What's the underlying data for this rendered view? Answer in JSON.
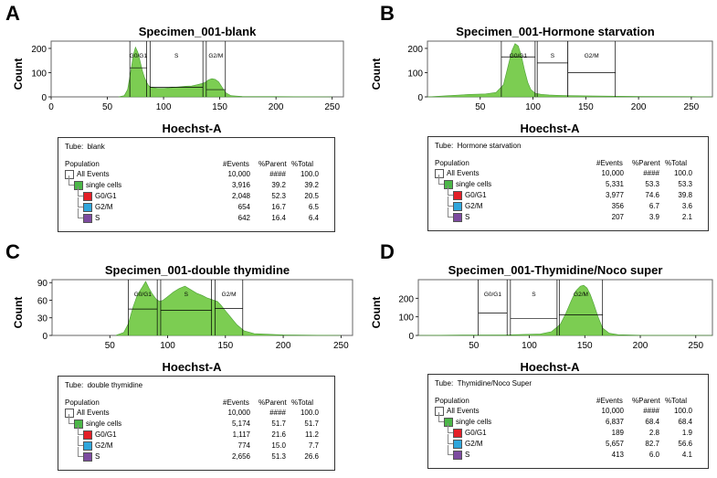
{
  "chart_data": [
    {
      "type": "area",
      "panel_label": "A",
      "title": "Specimen_001-blank",
      "xlabel": "Hoechst-A",
      "ylabel": "Count",
      "xlim": [
        0,
        260
      ],
      "ylim": [
        0,
        230
      ],
      "xticks": [
        0,
        50,
        100,
        150,
        200,
        250
      ],
      "yticks": [
        0,
        100,
        200
      ],
      "gates": [
        {
          "label": "G0/G1",
          "x1": 70,
          "x2": 85,
          "level": 120
        },
        {
          "label": "S",
          "x1": 88,
          "x2": 135,
          "level": 40
        },
        {
          "label": "G2/M",
          "x1": 138,
          "x2": 155,
          "level": 30
        }
      ],
      "x": [
        60,
        65,
        68,
        71,
        73,
        75,
        77,
        79,
        81,
        83,
        85,
        87,
        90,
        95,
        100,
        105,
        110,
        115,
        120,
        125,
        130,
        134,
        137,
        140,
        143,
        146,
        149,
        152,
        155,
        160,
        170,
        200,
        250
      ],
      "y": [
        0,
        5,
        30,
        110,
        170,
        205,
        185,
        150,
        110,
        80,
        60,
        45,
        38,
        35,
        35,
        37,
        40,
        42,
        44,
        45,
        50,
        55,
        60,
        70,
        75,
        72,
        62,
        40,
        18,
        5,
        2,
        1,
        0
      ],
      "table": {
        "tube_label": "Tube:",
        "tube_name": "blank",
        "headers": [
          "Population",
          "#Events",
          "%Parent",
          "%Total"
        ],
        "rows": [
          {
            "name": "All Events",
            "events": "10,000",
            "parent": "####",
            "total": "100.0",
            "color": "#ffffff",
            "indent": 0
          },
          {
            "name": "single cells",
            "events": "3,916",
            "parent": "39.2",
            "total": "39.2",
            "color": "#4cb848",
            "indent": 1
          },
          {
            "name": "G0/G1",
            "events": "2,048",
            "parent": "52.3",
            "total": "20.5",
            "color": "#e41e26",
            "indent": 2
          },
          {
            "name": "G2/M",
            "events": "654",
            "parent": "16.7",
            "total": "6.5",
            "color": "#2fa6dc",
            "indent": 2
          },
          {
            "name": "S",
            "events": "642",
            "parent": "16.4",
            "total": "6.4",
            "color": "#7d4ba0",
            "indent": 2
          }
        ]
      }
    },
    {
      "type": "area",
      "panel_label": "B",
      "title": "Specimen_001-Hormone starvation",
      "xlabel": "Hoechst-A",
      "ylabel": "Count",
      "xlim": [
        0,
        270
      ],
      "ylim": [
        0,
        230
      ],
      "xticks": [
        50,
        100,
        150,
        200,
        250
      ],
      "yticks": [
        0,
        100,
        200
      ],
      "gates": [
        {
          "label": "G0/G1",
          "x1": 70,
          "x2": 102,
          "level": 165
        },
        {
          "label": "S",
          "x1": 104,
          "x2": 133,
          "level": 140
        },
        {
          "label": "G2/M",
          "x1": 133,
          "x2": 178,
          "level": 100
        }
      ],
      "x": [
        0,
        20,
        40,
        55,
        65,
        72,
        76,
        80,
        83,
        86,
        89,
        92,
        95,
        98,
        102,
        108,
        115,
        125,
        135,
        150,
        170,
        200,
        250,
        270
      ],
      "y": [
        0,
        5,
        10,
        12,
        18,
        50,
        120,
        190,
        220,
        210,
        170,
        110,
        60,
        30,
        15,
        10,
        8,
        6,
        5,
        4,
        3,
        2,
        1,
        0
      ],
      "table": {
        "tube_label": "Tube:",
        "tube_name": "Hormone starvation",
        "headers": [
          "Population",
          "#Events",
          "%Parent",
          "%Total"
        ],
        "rows": [
          {
            "name": "All Events",
            "events": "10,000",
            "parent": "####",
            "total": "100.0",
            "color": "#ffffff",
            "indent": 0
          },
          {
            "name": "single cells",
            "events": "5,331",
            "parent": "53.3",
            "total": "53.3",
            "color": "#4cb848",
            "indent": 1
          },
          {
            "name": "G0/G1",
            "events": "3,977",
            "parent": "74.6",
            "total": "39.8",
            "color": "#e41e26",
            "indent": 2
          },
          {
            "name": "G2/M",
            "events": "356",
            "parent": "6.7",
            "total": "3.6",
            "color": "#2fa6dc",
            "indent": 2
          },
          {
            "name": "S",
            "events": "207",
            "parent": "3.9",
            "total": "2.1",
            "color": "#7d4ba0",
            "indent": 2
          }
        ]
      }
    },
    {
      "type": "area",
      "panel_label": "C",
      "title": "Specimen_001-double thymidine",
      "xlabel": "Hoechst-A",
      "ylabel": "Count",
      "xlim": [
        0,
        260
      ],
      "ylim": [
        0,
        95
      ],
      "xticks": [
        50,
        100,
        150,
        200,
        250
      ],
      "yticks": [
        0,
        30,
        60,
        90
      ],
      "gates": [
        {
          "label": "G0/G1",
          "x1": 66,
          "x2": 91,
          "level": 45
        },
        {
          "label": "S",
          "x1": 94,
          "x2": 138,
          "level": 43
        },
        {
          "label": "G2/M",
          "x1": 141,
          "x2": 165,
          "level": 46
        }
      ],
      "x": [
        55,
        62,
        66,
        70,
        74,
        78,
        81,
        84,
        87,
        90,
        93,
        96,
        100,
        105,
        110,
        115,
        120,
        125,
        130,
        134,
        137,
        140,
        143,
        146,
        150,
        155,
        160,
        166,
        175,
        200,
        250
      ],
      "y": [
        0,
        5,
        20,
        48,
        70,
        82,
        92,
        80,
        70,
        62,
        58,
        60,
        66,
        74,
        80,
        84,
        78,
        72,
        68,
        64,
        62,
        60,
        58,
        52,
        42,
        30,
        18,
        8,
        3,
        1,
        0
      ],
      "table": {
        "tube_label": "Tube:",
        "tube_name": "double thymidine",
        "headers": [
          "Population",
          "#Events",
          "%Parent",
          "%Total"
        ],
        "rows": [
          {
            "name": "All Events",
            "events": "10,000",
            "parent": "####",
            "total": "100.0",
            "color": "#ffffff",
            "indent": 0
          },
          {
            "name": "single cells",
            "events": "5,174",
            "parent": "51.7",
            "total": "51.7",
            "color": "#4cb848",
            "indent": 1
          },
          {
            "name": "G0/G1",
            "events": "1,117",
            "parent": "21.6",
            "total": "11.2",
            "color": "#e41e26",
            "indent": 2
          },
          {
            "name": "G2/M",
            "events": "774",
            "parent": "15.0",
            "total": "7.7",
            "color": "#2fa6dc",
            "indent": 2
          },
          {
            "name": "S",
            "events": "2,656",
            "parent": "51.3",
            "total": "26.6",
            "color": "#7d4ba0",
            "indent": 2
          }
        ]
      }
    },
    {
      "type": "area",
      "panel_label": "D",
      "title": "Specimen_001-Thymidine/Noco super",
      "xlabel": "Hoechst-A",
      "ylabel": "Count",
      "xlim": [
        0,
        265
      ],
      "ylim": [
        0,
        300
      ],
      "xticks": [
        50,
        100,
        150,
        200,
        250
      ],
      "yticks": [
        0,
        100,
        200
      ],
      "gates": [
        {
          "label": "G0/G1",
          "x1": 54,
          "x2": 80,
          "level": 120
        },
        {
          "label": "S",
          "x1": 83,
          "x2": 125,
          "level": 90
        },
        {
          "label": "G2/M",
          "x1": 127,
          "x2": 166,
          "level": 110
        }
      ],
      "x": [
        0,
        40,
        80,
        110,
        120,
        128,
        133,
        138,
        142,
        146,
        149,
        152,
        155,
        158,
        162,
        166,
        172,
        180,
        200,
        265
      ],
      "y": [
        0,
        2,
        3,
        8,
        20,
        60,
        120,
        190,
        240,
        265,
        270,
        255,
        220,
        170,
        100,
        40,
        12,
        4,
        1,
        0
      ],
      "table": {
        "tube_label": "Tube:",
        "tube_name": "Thymidine/Noco Super",
        "headers": [
          "Population",
          "#Events",
          "%Parent",
          "%Total"
        ],
        "rows": [
          {
            "name": "All Events",
            "events": "10,000",
            "parent": "####",
            "total": "100.0",
            "color": "#ffffff",
            "indent": 0
          },
          {
            "name": "single cells",
            "events": "6,837",
            "parent": "68.4",
            "total": "68.4",
            "color": "#4cb848",
            "indent": 1
          },
          {
            "name": "G0/G1",
            "events": "189",
            "parent": "2.8",
            "total": "1.9",
            "color": "#e41e26",
            "indent": 2
          },
          {
            "name": "G2/M",
            "events": "5,657",
            "parent": "82.7",
            "total": "56.6",
            "color": "#2fa6dc",
            "indent": 2
          },
          {
            "name": "S",
            "events": "413",
            "parent": "6.0",
            "total": "4.1",
            "color": "#7d4ba0",
            "indent": 2
          }
        ]
      }
    }
  ],
  "colors": {
    "histogram_fill": "#7ccd52",
    "histogram_stroke": "#4a9e33",
    "gate_line": "#000000"
  }
}
